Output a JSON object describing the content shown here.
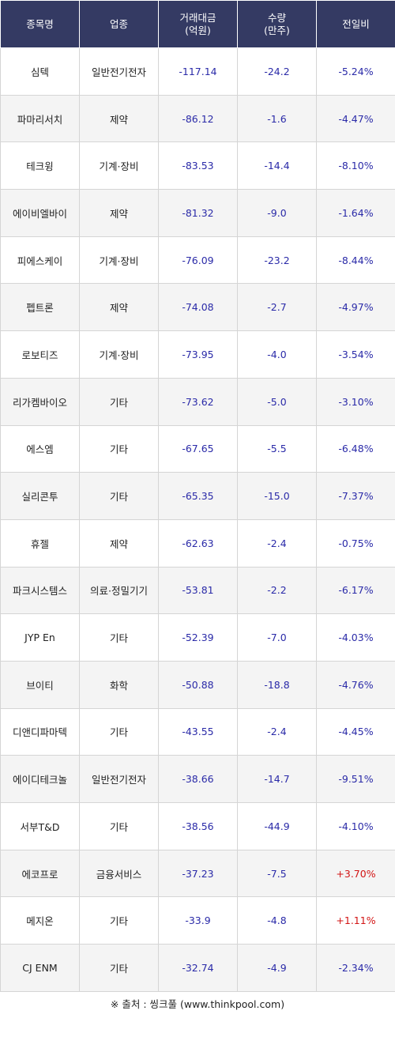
{
  "headers": {
    "name": "종목명",
    "sector": "업종",
    "amount_l1": "거래대금",
    "amount_l2": "(억원)",
    "volume_l1": "수량",
    "volume_l2": "(만주)",
    "change": "전일비"
  },
  "rows": [
    {
      "name": "심텍",
      "sector": "일반전기전자",
      "amount": "-117.14",
      "volume": "-24.2",
      "change": "-5.24%"
    },
    {
      "name": "파마리서치",
      "sector": "제약",
      "amount": "-86.12",
      "volume": "-1.6",
      "change": "-4.47%"
    },
    {
      "name": "테크윙",
      "sector": "기계·장비",
      "amount": "-83.53",
      "volume": "-14.4",
      "change": "-8.10%"
    },
    {
      "name": "에이비엘바이",
      "sector": "제약",
      "amount": "-81.32",
      "volume": "-9.0",
      "change": "-1.64%"
    },
    {
      "name": "피에스케이",
      "sector": "기계·장비",
      "amount": "-76.09",
      "volume": "-23.2",
      "change": "-8.44%"
    },
    {
      "name": "펩트론",
      "sector": "제약",
      "amount": "-74.08",
      "volume": "-2.7",
      "change": "-4.97%"
    },
    {
      "name": "로보티즈",
      "sector": "기계·장비",
      "amount": "-73.95",
      "volume": "-4.0",
      "change": "-3.54%"
    },
    {
      "name": "리가켐바이오",
      "sector": "기타",
      "amount": "-73.62",
      "volume": "-5.0",
      "change": "-3.10%"
    },
    {
      "name": "에스엠",
      "sector": "기타",
      "amount": "-67.65",
      "volume": "-5.5",
      "change": "-6.48%"
    },
    {
      "name": "실리콘투",
      "sector": "기타",
      "amount": "-65.35",
      "volume": "-15.0",
      "change": "-7.37%"
    },
    {
      "name": "휴젤",
      "sector": "제약",
      "amount": "-62.63",
      "volume": "-2.4",
      "change": "-0.75%"
    },
    {
      "name": "파크시스템스",
      "sector": "의료·정밀기기",
      "amount": "-53.81",
      "volume": "-2.2",
      "change": "-6.17%"
    },
    {
      "name": "JYP En",
      "sector": "기타",
      "amount": "-52.39",
      "volume": "-7.0",
      "change": "-4.03%"
    },
    {
      "name": "브이티",
      "sector": "화학",
      "amount": "-50.88",
      "volume": "-18.8",
      "change": "-4.76%"
    },
    {
      "name": "디앤디파마텍",
      "sector": "기타",
      "amount": "-43.55",
      "volume": "-2.4",
      "change": "-4.45%"
    },
    {
      "name": "에이디테크놀",
      "sector": "일반전기전자",
      "amount": "-38.66",
      "volume": "-14.7",
      "change": "-9.51%"
    },
    {
      "name": "서부T&D",
      "sector": "기타",
      "amount": "-38.56",
      "volume": "-44.9",
      "change": "-4.10%"
    },
    {
      "name": "에코프로",
      "sector": "금융서비스",
      "amount": "-37.23",
      "volume": "-7.5",
      "change": "+3.70%"
    },
    {
      "name": "메지온",
      "sector": "기타",
      "amount": "-33.9",
      "volume": "-4.8",
      "change": "+1.11%"
    },
    {
      "name": "CJ ENM",
      "sector": "기타",
      "amount": "-32.74",
      "volume": "-4.9",
      "change": "-2.34%"
    }
  ],
  "source": "※ 출처 : 씽크풀 (www.thinkpool.com)",
  "colors": {
    "header_bg": "#343a63",
    "number_text": "#2a2aa8",
    "positive_text": "#d21414"
  }
}
